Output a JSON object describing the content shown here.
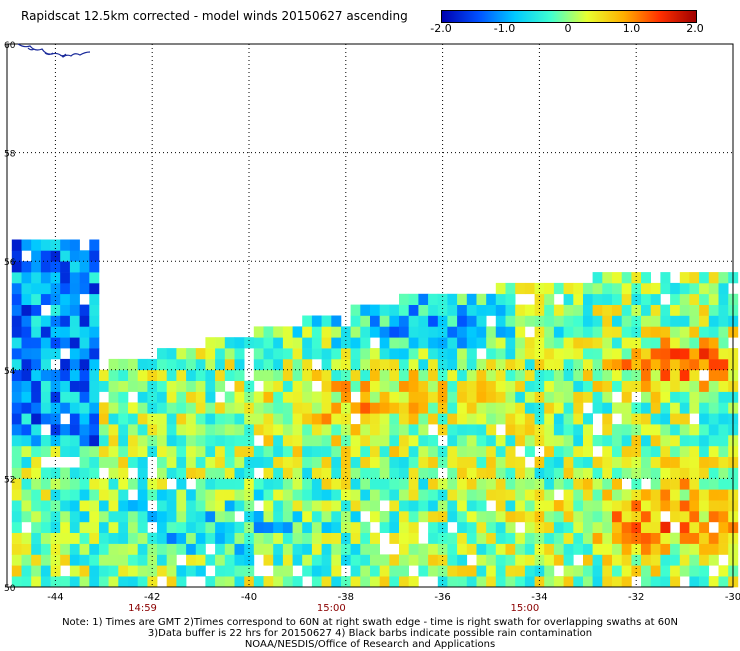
{
  "title": "Rapidscat 12.5km corrected - model winds 20150627 ascending",
  "colorbar": {
    "labels": [
      "-2.0",
      "-1.0",
      "0",
      "1.0",
      "2.0"
    ],
    "values": [
      -2.0,
      -1.0,
      0,
      1.0,
      2.0
    ],
    "range": [
      -2.0,
      2.0
    ],
    "colors": [
      "#0000b0",
      "#0050ff",
      "#00c8ff",
      "#40ffd0",
      "#e8ff30",
      "#ffb000",
      "#ff3000",
      "#a00000"
    ]
  },
  "map": {
    "lon_range": [
      -45,
      -30
    ],
    "lat_range": [
      50,
      60
    ],
    "lon_ticks": [
      -44,
      -42,
      -40,
      -38,
      -36,
      -34,
      -32,
      -30
    ],
    "lon_labels": [
      "-44",
      "-42",
      "-40",
      "-38",
      "-36",
      "-34",
      "-32",
      "-30"
    ],
    "lat_ticks": [
      50,
      52,
      54,
      56,
      58,
      60
    ],
    "lat_labels": [
      "50",
      "52",
      "54",
      "56",
      "58",
      "60"
    ],
    "grid": "dotted",
    "coast": "Greenland tip (upper-left)",
    "times": [
      {
        "text": "14:59",
        "lon": -42.2
      },
      {
        "text": "15:00",
        "lon": -38.3
      },
      {
        "text": "15:00",
        "lon": -34.3
      }
    ]
  },
  "swaths": [
    {
      "name": "west",
      "lon": [
        -44.9,
        -43.1
      ],
      "lat_bottom": 50.0,
      "lat_top": 56.4
    },
    {
      "name": "main",
      "lon": [
        -44.9,
        -30.0
      ],
      "lat_bottom": 50.0,
      "lat_top_profile": [
        [
          -43.1,
          54.0
        ],
        [
          -40.0,
          54.6
        ],
        [
          -37.0,
          55.2
        ],
        [
          -35.0,
          55.4
        ],
        [
          -33.0,
          55.6
        ],
        [
          -31.5,
          55.8
        ],
        [
          -30.0,
          55.8
        ]
      ]
    }
  ],
  "notes": [
    "Note: 1) Times are GMT 2)Times correspond to 60N at right swath edge - time is right swath for overlapping swaths at 60N",
    "3)Data buffer is 22 hrs for 20150627 4) Black barbs indicate possible rain contamination",
    "NOAA/NESDIS/Office of Research and Applications"
  ]
}
